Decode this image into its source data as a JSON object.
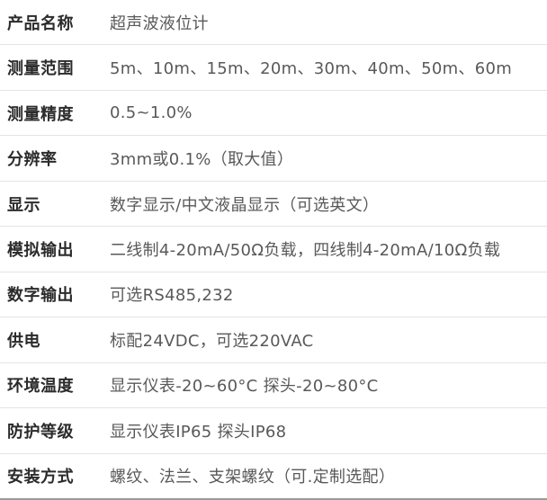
{
  "page": {
    "type": "product-specification-table",
    "product_name": "超声波液位计"
  },
  "colors": {
    "background": "#ffffff",
    "label_text": "#2b2b2b",
    "value_text": "#595959",
    "row_divider": "#e4e4e4",
    "bottom_border": "#9a9a9a"
  },
  "table": {
    "rows": [
      {
        "label": "产品名称",
        "value": "超声波液位计"
      },
      {
        "label": "测量范围",
        "value": "5m、10m、15m、20m、30m、40m、50m、60m"
      },
      {
        "label": "测量精度",
        "value": "0.5~1.0%"
      },
      {
        "label": "分辨率",
        "value": "3mm或0.1%（取大值）"
      },
      {
        "label": "显示",
        "value": "数字显示/中文液晶显示（可选英文）"
      },
      {
        "label": "模拟输出",
        "value": "二线制4-20mA/50Ω负载，四线制4-20mA/10Ω负载"
      },
      {
        "label": "数字输出",
        "value": "可选RS485,232"
      },
      {
        "label": "供电",
        "value": "标配24VDC，可选220VAC"
      },
      {
        "label": "环境温度",
        "value": "显示仪表-20~60°C 探头-20~80°C"
      },
      {
        "label": "防护等级",
        "value": "显示仪表IP65 探头IP68"
      },
      {
        "label": "安装方式",
        "value": "螺纹、法兰、支架螺纹（可.定制选配）"
      }
    ]
  }
}
